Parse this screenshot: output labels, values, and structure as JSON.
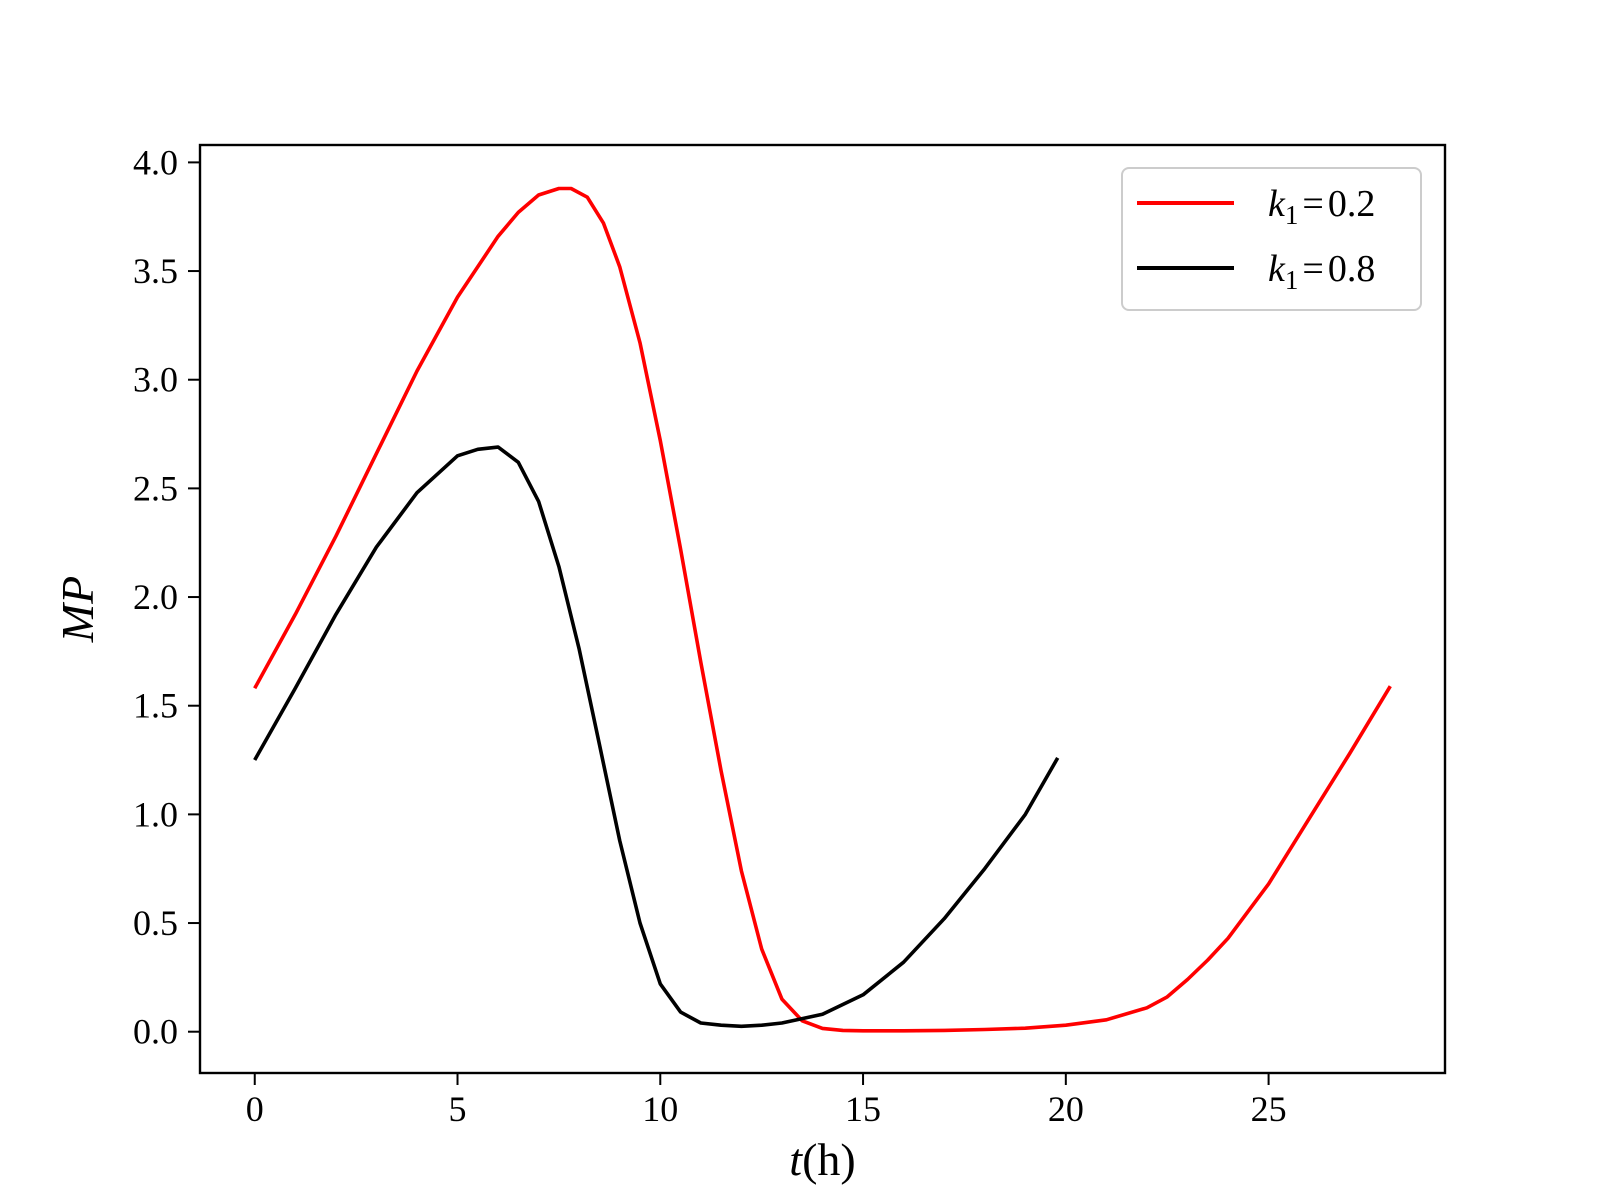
{
  "chart_data": {
    "type": "line",
    "title": "",
    "xlabel": {
      "var": "t",
      "unit": "(h)"
    },
    "ylabel": "MP",
    "xlim": [
      -1.35,
      29.35
    ],
    "ylim": [
      -0.19,
      4.08
    ],
    "xticks": [
      0,
      5,
      10,
      15,
      20,
      25
    ],
    "yticks": [
      0.0,
      0.5,
      1.0,
      1.5,
      2.0,
      2.5,
      3.0,
      3.5,
      4.0
    ],
    "xtick_labels": [
      "0",
      "5",
      "10",
      "15",
      "20",
      "25"
    ],
    "ytick_labels": [
      "0.0",
      "0.5",
      "1.0",
      "1.5",
      "2.0",
      "2.5",
      "3.0",
      "3.5",
      "4.0"
    ],
    "grid": false,
    "legend_position": "top-right",
    "series": [
      {
        "name": "k1 = 0.2",
        "legend": {
          "sym": "k",
          "sub": "1",
          "eq": "=",
          "val": "0.2"
        },
        "color": "#ff0000",
        "x": [
          0,
          1,
          2,
          3,
          4,
          5,
          6,
          6.5,
          7,
          7.5,
          7.8,
          8.2,
          8.6,
          9,
          9.5,
          10,
          10.5,
          11,
          11.5,
          12,
          12.5,
          13,
          13.5,
          14,
          14.5,
          15,
          16,
          17,
          18,
          19,
          20,
          21,
          22,
          22.5,
          23,
          23.5,
          24,
          25,
          26,
          27,
          28
        ],
        "y": [
          1.58,
          1.92,
          2.28,
          2.66,
          3.04,
          3.38,
          3.66,
          3.77,
          3.85,
          3.88,
          3.88,
          3.84,
          3.72,
          3.52,
          3.17,
          2.72,
          2.22,
          1.7,
          1.2,
          0.74,
          0.38,
          0.15,
          0.05,
          0.015,
          0.006,
          0.004,
          0.004,
          0.006,
          0.01,
          0.016,
          0.03,
          0.055,
          0.11,
          0.16,
          0.24,
          0.33,
          0.43,
          0.68,
          0.98,
          1.28,
          1.59
        ]
      },
      {
        "name": "k1 = 0.8",
        "legend": {
          "sym": "k",
          "sub": "1",
          "eq": "=",
          "val": "0.8"
        },
        "color": "#000000",
        "x": [
          0,
          1,
          2,
          3,
          4,
          5,
          5.5,
          6,
          6.5,
          7,
          7.5,
          8,
          8.5,
          9,
          9.5,
          10,
          10.5,
          11,
          11.5,
          12,
          12.5,
          13,
          14,
          15,
          16,
          17,
          18,
          19,
          19.8
        ],
        "y": [
          1.25,
          1.58,
          1.92,
          2.23,
          2.48,
          2.65,
          2.68,
          2.69,
          2.62,
          2.44,
          2.14,
          1.76,
          1.32,
          0.88,
          0.5,
          0.22,
          0.09,
          0.04,
          0.03,
          0.025,
          0.03,
          0.04,
          0.08,
          0.17,
          0.32,
          0.52,
          0.75,
          1.0,
          1.26
        ]
      }
    ]
  }
}
